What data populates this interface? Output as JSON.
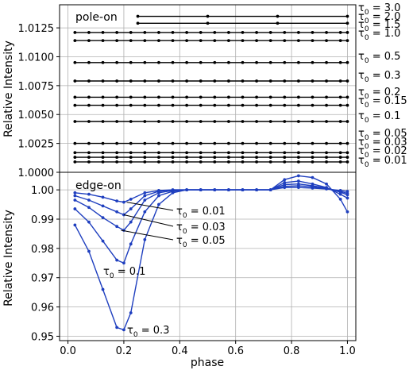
{
  "chart_data": [
    {
      "type": "line",
      "panel_label": "pole-on",
      "xlabel": "",
      "ylabel": "Relative Intensity",
      "xlim": [
        -0.03,
        1.03
      ],
      "ylim": [
        1.0,
        1.0145
      ],
      "y_ticks": [
        1.0,
        1.0025,
        1.005,
        1.0075,
        1.01,
        1.0125
      ],
      "y_tick_labels": [
        "1.0000",
        "1.0025",
        "1.0050",
        "1.0075",
        "1.0100",
        "1.0125"
      ],
      "grid": true,
      "line_color": "#000000",
      "series": [
        {
          "name": "τ0 = 0.01",
          "x": [
            0.025,
            0.075,
            0.125,
            0.175,
            0.225,
            0.275,
            0.325,
            0.375,
            0.425,
            0.475,
            0.525,
            0.575,
            0.625,
            0.675,
            0.725,
            0.775,
            0.825,
            0.875,
            0.925,
            0.975,
            1.0
          ],
          "value": 1.0009
        },
        {
          "name": "τ0 = 0.02",
          "x": [
            0.025,
            0.075,
            0.125,
            0.175,
            0.225,
            0.275,
            0.325,
            0.375,
            0.425,
            0.475,
            0.525,
            0.575,
            0.625,
            0.675,
            0.725,
            0.775,
            0.825,
            0.875,
            0.925,
            0.975,
            1.0
          ],
          "value": 1.0013
        },
        {
          "name": "τ0 = 0.03",
          "x": [
            0.025,
            0.075,
            0.125,
            0.175,
            0.225,
            0.275,
            0.325,
            0.375,
            0.425,
            0.475,
            0.525,
            0.575,
            0.625,
            0.675,
            0.725,
            0.775,
            0.825,
            0.875,
            0.925,
            0.975,
            1.0
          ],
          "value": 1.0017
        },
        {
          "name": "τ0 = 0.05",
          "x": [
            0.025,
            0.075,
            0.125,
            0.175,
            0.225,
            0.275,
            0.325,
            0.375,
            0.425,
            0.475,
            0.525,
            0.575,
            0.625,
            0.675,
            0.725,
            0.775,
            0.825,
            0.875,
            0.925,
            0.975,
            1.0
          ],
          "value": 1.0025
        },
        {
          "name": "τ0 = 0.1",
          "x": [
            0.025,
            0.075,
            0.125,
            0.175,
            0.225,
            0.275,
            0.325,
            0.375,
            0.425,
            0.475,
            0.525,
            0.575,
            0.625,
            0.675,
            0.725,
            0.775,
            0.825,
            0.875,
            0.925,
            0.975,
            1.0
          ],
          "value": 1.0044
        },
        {
          "name": "τ0 = 0.15",
          "x": [
            0.025,
            0.075,
            0.125,
            0.175,
            0.225,
            0.275,
            0.325,
            0.375,
            0.425,
            0.475,
            0.525,
            0.575,
            0.625,
            0.675,
            0.725,
            0.775,
            0.825,
            0.875,
            0.925,
            0.975,
            1.0
          ],
          "value": 1.0058
        },
        {
          "name": "τ0 = 0.2",
          "x": [
            0.025,
            0.075,
            0.125,
            0.175,
            0.225,
            0.275,
            0.325,
            0.375,
            0.425,
            0.475,
            0.525,
            0.575,
            0.625,
            0.675,
            0.725,
            0.775,
            0.825,
            0.875,
            0.925,
            0.975,
            1.0
          ],
          "value": 1.0065
        },
        {
          "name": "τ0 = 0.3",
          "x": [
            0.025,
            0.075,
            0.125,
            0.175,
            0.225,
            0.275,
            0.325,
            0.375,
            0.425,
            0.475,
            0.525,
            0.575,
            0.625,
            0.675,
            0.725,
            0.775,
            0.825,
            0.875,
            0.925,
            0.975,
            1.0
          ],
          "value": 1.0079
        },
        {
          "name": "τ0 = 0.5",
          "x": [
            0.025,
            0.075,
            0.125,
            0.175,
            0.225,
            0.275,
            0.325,
            0.375,
            0.425,
            0.475,
            0.525,
            0.575,
            0.625,
            0.675,
            0.725,
            0.775,
            0.825,
            0.875,
            0.925,
            0.975,
            1.0
          ],
          "value": 1.0095
        },
        {
          "name": "τ0 = 1.0",
          "x": [
            0.025,
            0.075,
            0.125,
            0.175,
            0.225,
            0.275,
            0.325,
            0.375,
            0.425,
            0.475,
            0.525,
            0.575,
            0.625,
            0.675,
            0.725,
            0.775,
            0.825,
            0.875,
            0.925,
            0.975,
            1.0
          ],
          "value": 1.0114
        },
        {
          "name": "τ0 = 1.5",
          "x": [
            0.025,
            0.075,
            0.125,
            0.175,
            0.225,
            0.275,
            0.325,
            0.375,
            0.425,
            0.475,
            0.525,
            0.575,
            0.625,
            0.675,
            0.725,
            0.775,
            0.825,
            0.875,
            0.925,
            0.975,
            1.0
          ],
          "value": 1.0121
        },
        {
          "name": "τ0 = 2.0",
          "x": [
            0.25,
            0.5,
            0.75,
            1.0
          ],
          "value": 1.0129
        },
        {
          "name": "τ0 = 3.0",
          "x": [
            0.25,
            0.5,
            0.75,
            1.0
          ],
          "value": 1.0135
        }
      ]
    },
    {
      "type": "line",
      "panel_label": "edge-on",
      "xlabel": "phase",
      "ylabel": "Relative Intensity",
      "xlim": [
        -0.03,
        1.03
      ],
      "ylim": [
        0.9485,
        1.006
      ],
      "x_ticks": [
        0.0,
        0.2,
        0.4,
        0.6,
        0.8,
        1.0
      ],
      "x_tick_labels": [
        "0.0",
        "0.2",
        "0.4",
        "0.6",
        "0.8",
        "1.0"
      ],
      "y_ticks": [
        0.95,
        0.96,
        0.97,
        0.98,
        0.99,
        1.0
      ],
      "y_tick_labels": [
        "0.95",
        "0.96",
        "0.97",
        "0.98",
        "0.99",
        "1.00"
      ],
      "grid": true,
      "line_color": "#1f3fbf",
      "x": [
        0.025,
        0.075,
        0.125,
        0.175,
        0.2,
        0.225,
        0.275,
        0.325,
        0.375,
        0.425,
        0.475,
        0.525,
        0.575,
        0.625,
        0.675,
        0.725,
        0.775,
        0.825,
        0.875,
        0.925,
        0.975,
        1.0
      ],
      "series": [
        {
          "name": "τ0 = 0.01",
          "values": [
            0.999,
            0.9985,
            0.9975,
            0.9962,
            0.9958,
            0.9968,
            0.999,
            0.9998,
            1.0,
            1.0,
            1.0,
            1.0,
            1.0,
            1.0,
            1.0,
            1.0,
            1.0008,
            1.0008,
            1.0006,
            1.0003,
            0.9998,
            0.9995
          ]
        },
        {
          "name": "τ0 = 0.03",
          "values": [
            0.998,
            0.9965,
            0.9945,
            0.9925,
            0.9915,
            0.9935,
            0.998,
            0.9995,
            1.0,
            1.0,
            1.0,
            1.0,
            1.0,
            1.0,
            1.0,
            1.0,
            1.0012,
            1.0014,
            1.001,
            1.0005,
            0.9995,
            0.9988
          ]
        },
        {
          "name": "τ0 = 0.05",
          "values": [
            0.9965,
            0.994,
            0.9905,
            0.9875,
            0.9862,
            0.989,
            0.9965,
            0.999,
            0.9998,
            1.0,
            1.0,
            1.0,
            1.0,
            1.0,
            1.0,
            1.0,
            1.0018,
            1.002,
            1.0014,
            1.0006,
            0.9992,
            0.9983
          ]
        },
        {
          "name": "τ0 = 0.1",
          "values": [
            0.9935,
            0.989,
            0.9825,
            0.976,
            0.975,
            0.9815,
            0.9925,
            0.998,
            0.9995,
            1.0,
            1.0,
            1.0,
            1.0,
            1.0,
            1.0,
            1.0,
            1.0025,
            1.003,
            1.002,
            1.0008,
            0.9985,
            0.9972
          ]
        },
        {
          "name": "τ0 = 0.3",
          "values": [
            0.988,
            0.979,
            0.966,
            0.953,
            0.9522,
            0.958,
            0.983,
            0.995,
            0.999,
            1.0,
            1.0,
            1.0,
            1.0,
            1.0,
            1.0,
            1.0,
            1.0035,
            1.0048,
            1.0042,
            1.002,
            0.9968,
            0.9925
          ]
        }
      ]
    }
  ],
  "labels": {
    "pole_on": "pole-on",
    "edge_on": "edge-on",
    "ylabel": "Relative Intensity",
    "xlabel": "phase",
    "tau": "τ",
    "tau_sub": "0"
  }
}
